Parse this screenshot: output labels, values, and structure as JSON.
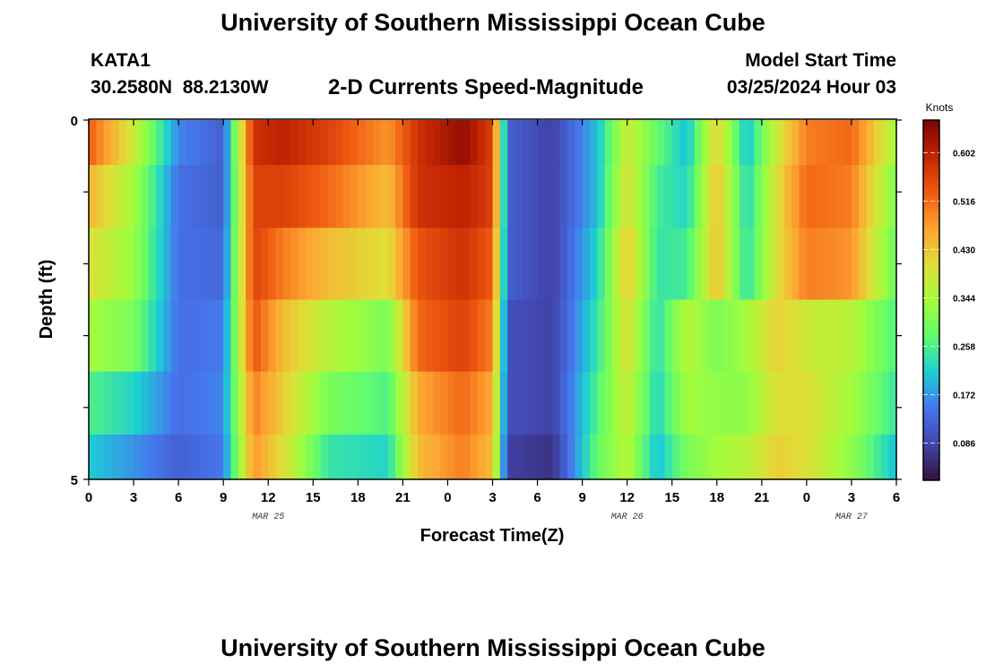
{
  "header": {
    "title": "University of Southern Mississippi Ocean Cube",
    "station_id": "KATA1",
    "station_coords": "30.2580N  88.2130W",
    "plot_title": "2-D Currents Speed-Magnitude",
    "model_start_label": "Model Start Time",
    "model_start_value": "03/25/2024 Hour 03"
  },
  "footer": {
    "title": "University of Southern Mississippi Ocean Cube"
  },
  "chart_data": {
    "type": "heatmap",
    "title": "2-D Currents Speed-Magnitude",
    "xlabel": "Forecast Time(Z)",
    "ylabel": "Depth (ft)",
    "x_unit": "forecast hours from 0Z Mar 25",
    "x_range": [
      0,
      54
    ],
    "y_range": [
      0,
      5
    ],
    "y_reversed": true,
    "x_ticks": [
      {
        "hour": 0,
        "label": "0"
      },
      {
        "hour": 3,
        "label": "3"
      },
      {
        "hour": 6,
        "label": "6"
      },
      {
        "hour": 9,
        "label": "9"
      },
      {
        "hour": 12,
        "label": "12"
      },
      {
        "hour": 15,
        "label": "15"
      },
      {
        "hour": 18,
        "label": "18"
      },
      {
        "hour": 21,
        "label": "21"
      },
      {
        "hour": 24,
        "label": "0"
      },
      {
        "hour": 27,
        "label": "3"
      },
      {
        "hour": 30,
        "label": "6"
      },
      {
        "hour": 33,
        "label": "9"
      },
      {
        "hour": 36,
        "label": "12"
      },
      {
        "hour": 39,
        "label": "15"
      },
      {
        "hour": 42,
        "label": "18"
      },
      {
        "hour": 45,
        "label": "21"
      },
      {
        "hour": 48,
        "label": "0"
      },
      {
        "hour": 51,
        "label": "3"
      },
      {
        "hour": 54,
        "label": "6"
      }
    ],
    "date_labels": [
      {
        "hour": 12,
        "label": "MAR 25"
      },
      {
        "hour": 36,
        "label": "MAR 26"
      },
      {
        "hour": 51,
        "label": "MAR 27"
      }
    ],
    "y_ticks": [
      {
        "depth": 0,
        "label": "0"
      },
      {
        "depth": 5,
        "label": "5"
      }
    ],
    "colorbar": {
      "label": "Knots",
      "min": 0.02,
      "max": 0.66,
      "tick_values": [
        0.086,
        0.172,
        0.258,
        0.344,
        0.43,
        0.516,
        0.602
      ],
      "tick_labels": [
        "0.086",
        "0.172",
        "0.258",
        "0.344",
        "0.430",
        "0.516",
        "0.602"
      ],
      "colormap": "turbo"
    },
    "layer_depths": [
      0.25,
      1.0,
      2.0,
      3.0,
      4.0,
      4.75
    ],
    "key_hours": [
      0,
      3,
      6,
      9,
      11,
      13,
      16,
      20,
      22,
      25,
      27,
      28,
      31,
      34,
      36,
      38,
      40,
      42,
      44,
      46,
      48,
      51,
      54
    ],
    "rows": [
      [
        0.53,
        0.38,
        0.16,
        0.12,
        0.58,
        0.6,
        0.56,
        0.48,
        0.58,
        0.64,
        0.56,
        0.12,
        0.08,
        0.2,
        0.38,
        0.28,
        0.2,
        0.42,
        0.2,
        0.38,
        0.5,
        0.52,
        0.34
      ],
      [
        0.45,
        0.34,
        0.14,
        0.12,
        0.56,
        0.56,
        0.52,
        0.44,
        0.58,
        0.6,
        0.56,
        0.12,
        0.08,
        0.2,
        0.4,
        0.25,
        0.22,
        0.44,
        0.22,
        0.4,
        0.52,
        0.5,
        0.3
      ],
      [
        0.4,
        0.33,
        0.14,
        0.13,
        0.56,
        0.5,
        0.44,
        0.4,
        0.54,
        0.58,
        0.53,
        0.12,
        0.08,
        0.22,
        0.43,
        0.24,
        0.25,
        0.44,
        0.23,
        0.4,
        0.5,
        0.48,
        0.28
      ],
      [
        0.34,
        0.3,
        0.14,
        0.15,
        0.54,
        0.44,
        0.36,
        0.3,
        0.52,
        0.56,
        0.5,
        0.1,
        0.08,
        0.24,
        0.4,
        0.23,
        0.36,
        0.3,
        0.34,
        0.42,
        0.38,
        0.36,
        0.26
      ],
      [
        0.26,
        0.22,
        0.14,
        0.16,
        0.5,
        0.42,
        0.3,
        0.26,
        0.46,
        0.52,
        0.46,
        0.1,
        0.08,
        0.26,
        0.38,
        0.22,
        0.34,
        0.32,
        0.32,
        0.4,
        0.4,
        0.34,
        0.24
      ],
      [
        0.21,
        0.17,
        0.12,
        0.15,
        0.48,
        0.4,
        0.24,
        0.22,
        0.44,
        0.5,
        0.44,
        0.08,
        0.06,
        0.28,
        0.36,
        0.2,
        0.3,
        0.34,
        0.36,
        0.42,
        0.4,
        0.32,
        0.2
      ]
    ]
  }
}
